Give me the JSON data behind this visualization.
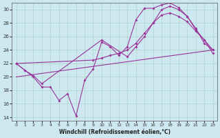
{
  "xlabel": "Windchill (Refroidissement éolien,°C)",
  "bg_color": "#cde8f0",
  "grid_color": "#b0d4c8",
  "line_color": "#993399",
  "xlim": [
    -0.5,
    23.5
  ],
  "ylim": [
    13.5,
    31.0
  ],
  "yticks": [
    14,
    16,
    18,
    20,
    22,
    24,
    26,
    28,
    30
  ],
  "xticks": [
    0,
    1,
    2,
    3,
    4,
    5,
    6,
    7,
    8,
    9,
    10,
    11,
    12,
    13,
    14,
    15,
    16,
    17,
    18,
    19,
    20,
    21,
    22,
    23
  ],
  "line1_x": [
    0,
    1,
    2,
    3,
    4,
    5,
    6,
    7,
    8,
    9,
    10,
    11,
    12,
    13,
    14,
    15,
    16,
    17,
    18,
    19,
    20,
    21,
    22,
    23
  ],
  "line1_y": [
    22,
    21,
    20,
    18.5,
    18.5,
    16.5,
    17.5,
    14.2,
    19.5,
    21.2,
    25.2,
    24.5,
    23.2,
    24.5,
    28.5,
    30.2,
    30.2,
    30.7,
    31.0,
    30.3,
    29.0,
    27.2,
    25.0,
    24.0
  ],
  "line2_x": [
    0,
    1,
    2,
    3,
    10,
    13,
    14,
    15,
    16,
    17,
    18,
    19,
    20,
    21,
    22,
    23
  ],
  "line2_y": [
    22,
    21,
    20.2,
    19.0,
    25.5,
    23.0,
    24.5,
    26.0,
    28.0,
    30.0,
    30.5,
    30.0,
    29.0,
    27.0,
    25.5,
    24.0
  ],
  "line3_x": [
    0,
    23
  ],
  "line3_y": [
    20.0,
    24.0
  ],
  "line4_x": [
    0,
    9,
    10,
    11,
    12,
    13,
    14,
    15,
    16,
    17,
    18,
    19,
    20,
    21,
    22,
    23
  ],
  "line4_y": [
    22.0,
    22.5,
    22.8,
    23.2,
    23.5,
    24.0,
    25.0,
    26.5,
    28.0,
    29.2,
    29.5,
    29.0,
    28.2,
    26.8,
    25.5,
    23.5
  ]
}
